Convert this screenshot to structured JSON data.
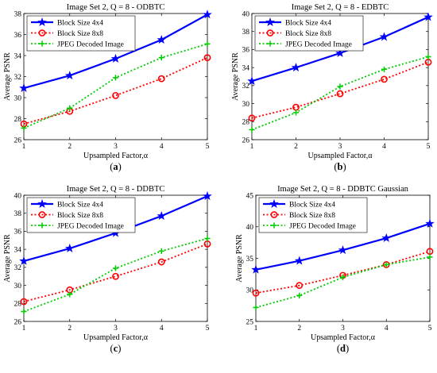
{
  "chart_data": [
    {
      "type": "line",
      "title": "Image Set 2, Q = 8 - ODBTC",
      "xlabel": "Upsampled Factor,α",
      "ylabel": "Average PSNR",
      "panel_label": "(a)",
      "x": [
        1,
        2,
        3,
        4,
        5
      ],
      "xticks": [
        "1",
        "2",
        "3",
        "4",
        "5"
      ],
      "xlim": [
        1,
        5
      ],
      "ylim": [
        26,
        38
      ],
      "yticks": [
        26,
        28,
        30,
        32,
        34,
        36,
        38
      ],
      "series": [
        {
          "name": "Block Size 4x4",
          "values": [
            30.9,
            32.1,
            33.7,
            35.5,
            37.9
          ]
        },
        {
          "name": "Block Size 8x8",
          "values": [
            27.5,
            28.7,
            30.2,
            31.8,
            33.8
          ]
        },
        {
          "name": "JPEG Decoded Image",
          "values": [
            27.1,
            29.0,
            31.9,
            33.8,
            35.1
          ]
        }
      ]
    },
    {
      "type": "line",
      "title": "Image Set 2, Q = 8 - EDBTC",
      "xlabel": "Upsampled Factor,α",
      "ylabel": "Average PSNR",
      "panel_label": "(b)",
      "x": [
        1,
        2,
        3,
        4,
        5
      ],
      "xticks": [
        "1",
        "2",
        "3",
        "4",
        "5"
      ],
      "xlim": [
        1,
        5
      ],
      "ylim": [
        26,
        40
      ],
      "yticks": [
        26,
        28,
        30,
        32,
        34,
        36,
        38,
        40
      ],
      "series": [
        {
          "name": "Block Size 4x4",
          "values": [
            32.5,
            34.0,
            35.6,
            37.4,
            39.6
          ]
        },
        {
          "name": "Block Size 8x8",
          "values": [
            28.4,
            29.6,
            31.1,
            32.7,
            34.6
          ]
        },
        {
          "name": "JPEG Decoded Image",
          "values": [
            27.1,
            29.0,
            31.9,
            33.8,
            35.2
          ]
        }
      ]
    },
    {
      "type": "line",
      "title": "Image Set 2, Q = 8 - DDBTC",
      "xlabel": "Upsampled Factor,α",
      "ylabel": "Average PSNR",
      "panel_label": "(c)",
      "x": [
        1,
        2,
        3,
        4,
        5
      ],
      "xticks": [
        "1",
        "2",
        "3",
        "4",
        "5"
      ],
      "xlim": [
        1,
        5
      ],
      "ylim": [
        26,
        40
      ],
      "yticks": [
        26,
        28,
        30,
        32,
        34,
        36,
        38,
        40
      ],
      "series": [
        {
          "name": "Block Size 4x4",
          "values": [
            32.7,
            34.1,
            35.8,
            37.7,
            39.9
          ]
        },
        {
          "name": "Block Size 8x8",
          "values": [
            28.2,
            29.5,
            31.0,
            32.6,
            34.6
          ]
        },
        {
          "name": "JPEG Decoded Image",
          "values": [
            27.1,
            29.0,
            31.9,
            33.8,
            35.2
          ]
        }
      ]
    },
    {
      "type": "line",
      "title": "Image Set 2, Q = 8 - DDBTC Gaussian",
      "xlabel": "Upsampled Factor,α",
      "ylabel": "Average PSNR",
      "panel_label": "(d)",
      "x": [
        1,
        2,
        3,
        4,
        5
      ],
      "xticks": [
        "1",
        "2",
        "3",
        "4",
        "5"
      ],
      "xlim": [
        1,
        5
      ],
      "ylim": [
        25,
        45
      ],
      "yticks": [
        25,
        30,
        35,
        40,
        45
      ],
      "series": [
        {
          "name": "Block Size 4x4",
          "values": [
            33.2,
            34.6,
            36.3,
            38.2,
            40.5
          ]
        },
        {
          "name": "Block Size 8x8",
          "values": [
            29.5,
            30.7,
            32.3,
            34.0,
            36.1
          ]
        },
        {
          "name": "JPEG Decoded Image",
          "values": [
            27.2,
            29.1,
            32.0,
            34.0,
            35.2
          ]
        }
      ]
    }
  ],
  "colors": {
    "series_4x4": "#0000ff",
    "series_8x8": "#ff0000",
    "series_jpeg": "#00cc00"
  },
  "legend_position": "top-left"
}
